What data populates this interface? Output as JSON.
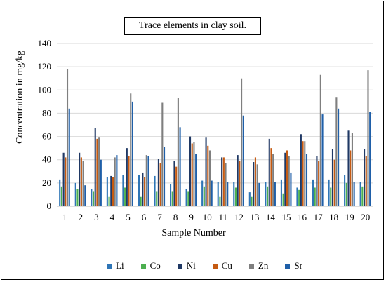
{
  "chart_data": {
    "type": "bar",
    "title": "Trace elements in clay soil.",
    "xlabel": "Sample Number",
    "ylabel": "Concentration in mg/kg",
    "ylim": [
      0,
      140
    ],
    "yticks": [
      0,
      20,
      40,
      60,
      80,
      100,
      120,
      140
    ],
    "grid": true,
    "legend_position": "bottom",
    "categories": [
      "1",
      "2",
      "3",
      "4",
      "5",
      "6",
      "7",
      "8",
      "9",
      "10",
      "11",
      "12",
      "13",
      "14",
      "15",
      "16",
      "17",
      "18",
      "19",
      "20"
    ],
    "series": [
      {
        "name": "Li",
        "color": "#2e75b6",
        "values": [
          23,
          20,
          15,
          25,
          27,
          27,
          26,
          19,
          15,
          22,
          21,
          21,
          12,
          21,
          23,
          16,
          23,
          23,
          27,
          21
        ]
      },
      {
        "name": "Co",
        "color": "#4caf50",
        "values": [
          17,
          15,
          13,
          8,
          16,
          8,
          13,
          13,
          13,
          17,
          8,
          16,
          8,
          17,
          11,
          14,
          16,
          16,
          20,
          17
        ]
      },
      {
        "name": "Ni",
        "color": "#1f3864",
        "values": [
          46,
          46,
          67,
          26,
          50,
          29,
          41,
          39,
          60,
          59,
          42,
          44,
          38,
          58,
          46,
          62,
          43,
          49,
          65,
          49
        ]
      },
      {
        "name": "Cu",
        "color": "#c55a11",
        "values": [
          42,
          42,
          58,
          25,
          43,
          25,
          37,
          34,
          54,
          52,
          42,
          39,
          42,
          50,
          48,
          56,
          39,
          40,
          48,
          43
        ]
      },
      {
        "name": "Zn",
        "color": "#7f7f7f",
        "values": [
          118,
          39,
          59,
          42,
          97,
          44,
          89,
          93,
          55,
          48,
          37,
          110,
          36,
          45,
          43,
          56,
          113,
          94,
          63,
          117
        ]
      },
      {
        "name": "Sr",
        "color": "#1f5fa8",
        "values": [
          84,
          18,
          40,
          44,
          90,
          43,
          51,
          68,
          45,
          22,
          21,
          78,
          20,
          21,
          29,
          45,
          79,
          84,
          21,
          81
        ]
      }
    ]
  }
}
